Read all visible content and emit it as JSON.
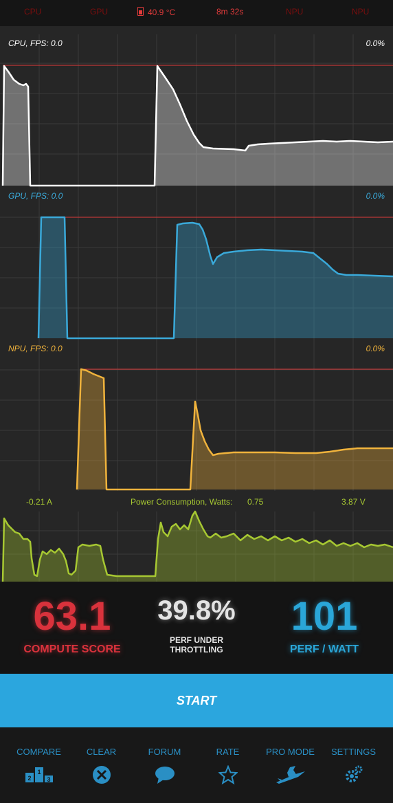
{
  "status": {
    "cpu": "CPU",
    "gpu": "GPU",
    "temperature": "40.9 °C",
    "time": "8m 32s",
    "npu1": "NPU",
    "npu2": "NPU"
  },
  "graphs": {
    "cpu": {
      "label": "CPU, FPS:  0.0",
      "percent": "0.0%"
    },
    "gpu": {
      "label": "GPU, FPS:  0.0",
      "percent": "0.0%"
    },
    "npu": {
      "label": "NPU, FPS:  0.0",
      "percent": "0.0%"
    }
  },
  "power": {
    "current": "-0.21 A",
    "title": "Power Consumption, Watts:",
    "watts": "0.75",
    "voltage": "3.87 V"
  },
  "scores": {
    "compute_value": "63.1",
    "compute_label": "COMPUTE SCORE",
    "perf_value": "39.8%",
    "perf_label_1": "PERF UNDER",
    "perf_label_2": "THROTTLING",
    "watt_value": "101",
    "watt_label": "PERF / WATT"
  },
  "start_label": "START",
  "nav": [
    {
      "label": "COMPARE",
      "icon": "podium-icon"
    },
    {
      "label": "CLEAR",
      "icon": "clear-icon"
    },
    {
      "label": "FORUM",
      "icon": "chat-icon"
    },
    {
      "label": "RATE",
      "icon": "star-icon"
    },
    {
      "label": "PRO MODE",
      "icon": "witch-icon"
    },
    {
      "label": "SETTINGS",
      "icon": "gear-icon"
    }
  ],
  "colors": {
    "cpu": "#ffffff",
    "gpu": "#3aa9d9",
    "npu": "#f0b33c",
    "power": "#a7c832",
    "max_line": "#e03a3a",
    "compute": "#d9323c",
    "accent": "#2ba6de"
  }
}
